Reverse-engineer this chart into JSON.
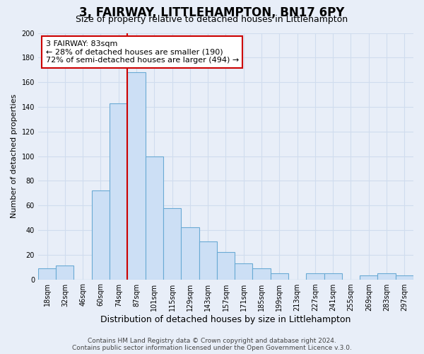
{
  "title": "3, FAIRWAY, LITTLEHAMPTON, BN17 6PY",
  "subtitle": "Size of property relative to detached houses in Littlehampton",
  "xlabel": "Distribution of detached houses by size in Littlehampton",
  "ylabel": "Number of detached properties",
  "bin_labels": [
    "18sqm",
    "32sqm",
    "46sqm",
    "60sqm",
    "74sqm",
    "87sqm",
    "101sqm",
    "115sqm",
    "129sqm",
    "143sqm",
    "157sqm",
    "171sqm",
    "185sqm",
    "199sqm",
    "213sqm",
    "227sqm",
    "241sqm",
    "255sqm",
    "269sqm",
    "283sqm",
    "297sqm"
  ],
  "bar_heights": [
    9,
    11,
    0,
    72,
    143,
    168,
    100,
    58,
    42,
    31,
    22,
    13,
    9,
    5,
    0,
    5,
    5,
    0,
    3,
    5,
    3
  ],
  "bar_color": "#ccdff5",
  "bar_edge_color": "#6aaad4",
  "vline_x": 5,
  "vline_color": "#cc0000",
  "annotation_line1": "3 FAIRWAY: 83sqm",
  "annotation_line2": "← 28% of detached houses are smaller (190)",
  "annotation_line3": "72% of semi-detached houses are larger (494) →",
  "annotation_box_color": "#ffffff",
  "annotation_box_edge": "#cc0000",
  "ylim": [
    0,
    200
  ],
  "yticks": [
    0,
    20,
    40,
    60,
    80,
    100,
    120,
    140,
    160,
    180,
    200
  ],
  "grid_color": "#d0dcee",
  "bg_color": "#e8eef8",
  "plot_bg_color": "#e8eef8",
  "footer_line1": "Contains HM Land Registry data © Crown copyright and database right 2024.",
  "footer_line2": "Contains public sector information licensed under the Open Government Licence v.3.0.",
  "title_fontsize": 12,
  "subtitle_fontsize": 9,
  "xlabel_fontsize": 9,
  "ylabel_fontsize": 8,
  "tick_fontsize": 7,
  "footer_fontsize": 6.5,
  "annot_fontsize": 8
}
